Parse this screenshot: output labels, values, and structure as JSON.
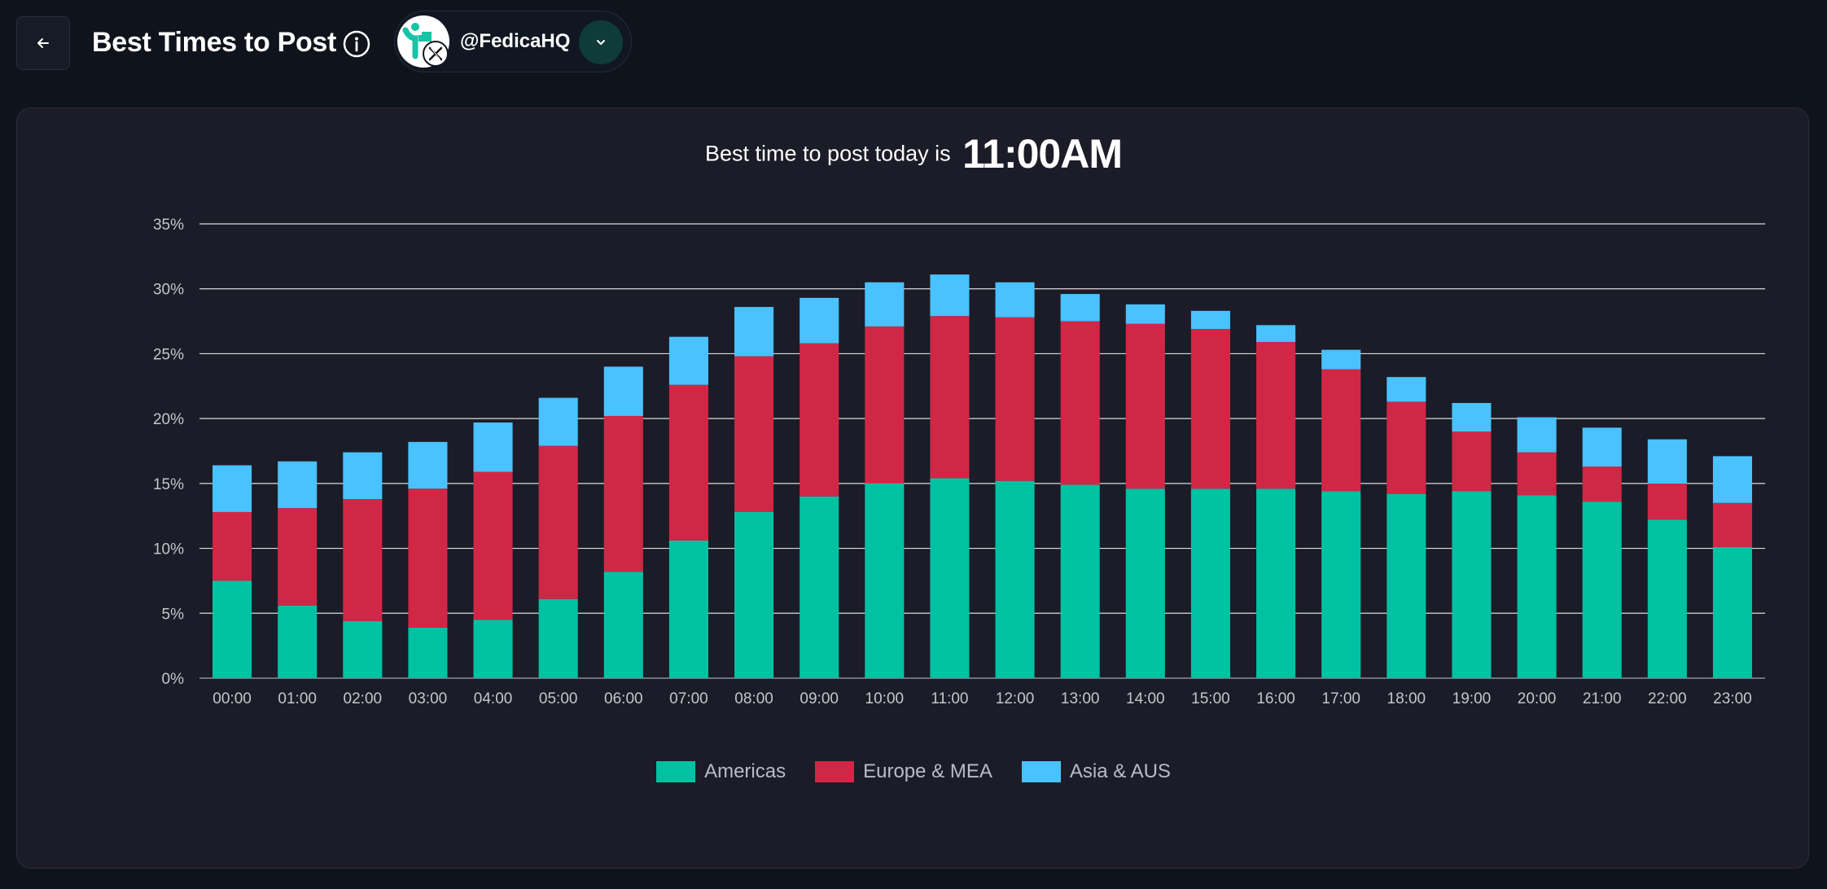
{
  "header": {
    "title": "Best Times to Post",
    "account": "@FedicaHQ"
  },
  "icons": {
    "back": "arrow-left-icon",
    "info": "info-circle-icon",
    "account_logo": "fedica-logo-icon",
    "network": "x-logo-icon",
    "dropdown": "chevron-down-icon"
  },
  "colors": {
    "background": "#0f131c",
    "card": "#1b1c27",
    "accent": "#0f3b39"
  },
  "headline": {
    "lead": "Best time to post today is",
    "time": "11:00AM"
  },
  "chart_data": {
    "type": "bar",
    "stacked": true,
    "categories": [
      "00:00",
      "01:00",
      "02:00",
      "03:00",
      "04:00",
      "05:00",
      "06:00",
      "07:00",
      "08:00",
      "09:00",
      "10:00",
      "11:00",
      "12:00",
      "13:00",
      "14:00",
      "15:00",
      "16:00",
      "17:00",
      "18:00",
      "19:00",
      "20:00",
      "21:00",
      "22:00",
      "23:00"
    ],
    "series": [
      {
        "name": "Americas",
        "color": "#00c2a3",
        "values": [
          7.5,
          5.6,
          4.4,
          3.9,
          4.5,
          6.1,
          8.2,
          10.6,
          12.8,
          14.0,
          15.0,
          15.4,
          15.2,
          14.9,
          14.6,
          14.6,
          14.6,
          14.4,
          14.2,
          14.4,
          14.1,
          13.6,
          12.2,
          10.1
        ]
      },
      {
        "name": "Europe & MEA",
        "color": "#d12746",
        "values": [
          5.3,
          7.5,
          9.4,
          10.7,
          11.4,
          11.8,
          12.0,
          12.0,
          12.0,
          11.8,
          12.1,
          12.5,
          12.6,
          12.6,
          12.7,
          12.3,
          11.3,
          9.4,
          7.1,
          4.6,
          3.3,
          2.7,
          2.8,
          3.4
        ]
      },
      {
        "name": "Asia & AUS",
        "color": "#49c2ff",
        "values": [
          3.6,
          3.6,
          3.6,
          3.6,
          3.8,
          3.7,
          3.8,
          3.7,
          3.8,
          3.5,
          3.4,
          3.2,
          2.7,
          2.1,
          1.5,
          1.4,
          1.3,
          1.5,
          1.9,
          2.2,
          2.7,
          3.0,
          3.4,
          3.6
        ]
      }
    ],
    "y_ticks": [
      "0%",
      "5%",
      "10%",
      "15%",
      "20%",
      "25%",
      "30%",
      "35%"
    ],
    "ylim": [
      0,
      35
    ],
    "grid": true,
    "legend_position": "bottom-center"
  }
}
